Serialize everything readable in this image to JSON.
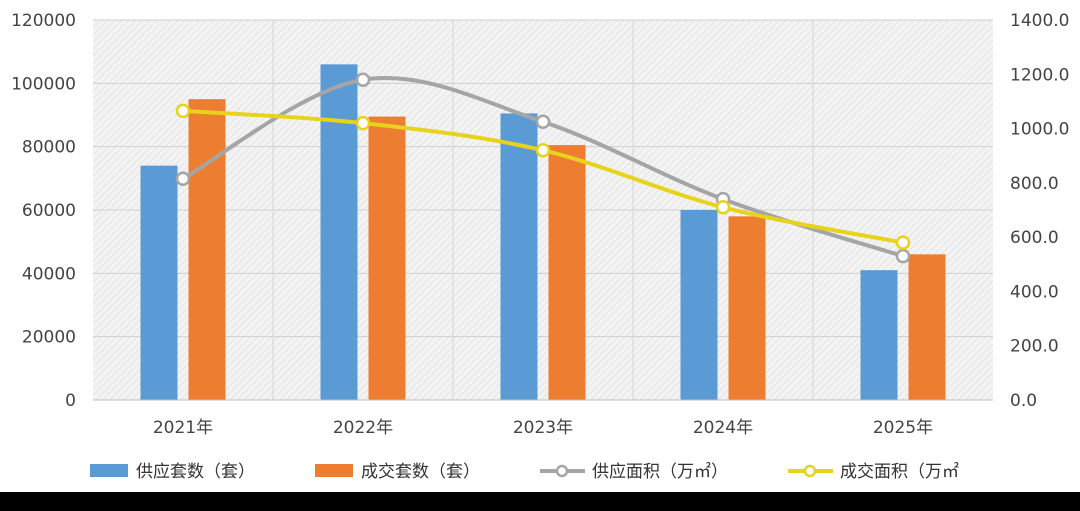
{
  "chart_data": {
    "type": "bar",
    "categories": [
      "2021年",
      "2022年",
      "2023年",
      "2024年",
      "2025年"
    ],
    "series": [
      {
        "name": "供应套数（套）",
        "type": "bar",
        "axis": "left",
        "color": "#5b9bd5",
        "values": [
          74000,
          106000,
          90500,
          60000,
          41000
        ]
      },
      {
        "name": "成交套数（套）",
        "type": "bar",
        "axis": "left",
        "color": "#ed7d31",
        "values": [
          95000,
          89500,
          80500,
          58000,
          46000
        ]
      },
      {
        "name": "供应面积（万㎡）",
        "type": "line",
        "axis": "right",
        "color": "#a5a5a5",
        "values": [
          815,
          1180,
          1025,
          740,
          530
        ]
      },
      {
        "name": "成交面积（万㎡",
        "type": "line",
        "axis": "right",
        "color": "#e8d31c",
        "values": [
          1065,
          1020,
          920,
          710,
          580
        ]
      }
    ],
    "y_left": {
      "min": 0,
      "max": 120000,
      "ticks": [
        "0",
        "20000",
        "40000",
        "60000",
        "80000",
        "100000",
        "120000"
      ]
    },
    "y_right": {
      "min": 0,
      "max": 1400,
      "ticks": [
        "0.0",
        "200.0",
        "400.0",
        "600.0",
        "800.0",
        "1000.0",
        "1200.0",
        "1400.0"
      ]
    },
    "grid": true,
    "legend": "bottom",
    "plot_background": "hatched light gray"
  }
}
